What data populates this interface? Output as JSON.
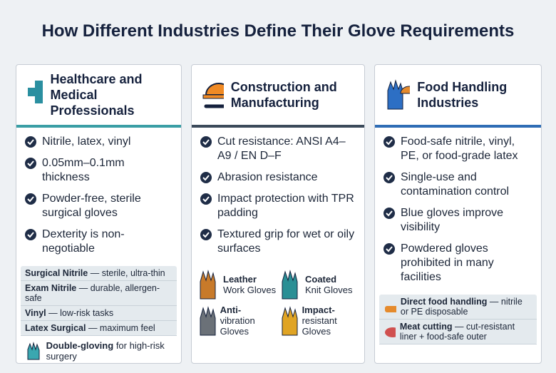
{
  "title": "How Different Industries Define Their Glove Requirements",
  "columns": [
    {
      "heading": "Healthcare and Medical Professionals",
      "bullets": [
        "Nitrile, latex, vinyl",
        "0.05mm–0.1mm thickness",
        "Powder-free, sterile surgical gloves",
        "Dexterity is non-negotiable"
      ],
      "rows": [
        {
          "name": "Surgical Nitrile",
          "desc": "— sterile, ultra-thin"
        },
        {
          "name": "Exam Nitrile",
          "desc": "— durable, allergen-safe"
        },
        {
          "name": "Vinyl",
          "desc": "— low-risk tasks"
        },
        {
          "name": "Latex Surgical",
          "desc": "— maximum feel"
        }
      ],
      "note": {
        "name": "Double-gloving",
        "desc": "for high-risk surgery"
      }
    },
    {
      "heading": "Construction and Manufacturing",
      "bullets": [
        "Cut resistance: ANSI A4–A9 / EN D–F",
        "Abrasion resistance",
        "Impact protection with TPR padding",
        "Textured grip for wet or oily surfaces"
      ],
      "gloves": [
        {
          "name": "Leather",
          "desc": "Work Gloves"
        },
        {
          "name": "Coated",
          "desc": "Knit Gloves"
        },
        {
          "name": "Anti-",
          "desc": "vibration Gloves"
        },
        {
          "name": "Impact-",
          "desc": "resistant Gloves"
        }
      ]
    },
    {
      "heading": "Food Handling Industries",
      "bullets": [
        "Food-safe nitrile, vinyl, PE, or food-grade latex",
        "Single-use and contamination control",
        "Blue gloves improve visibility",
        "Powdered gloves prohibited in many facilities"
      ],
      "rows": [
        {
          "name": "Direct food handling",
          "desc": "— nitrile or PE disposable"
        },
        {
          "name": "Meat cutting",
          "desc": "— cut-resistant liner + food-safe outer"
        }
      ]
    }
  ]
}
